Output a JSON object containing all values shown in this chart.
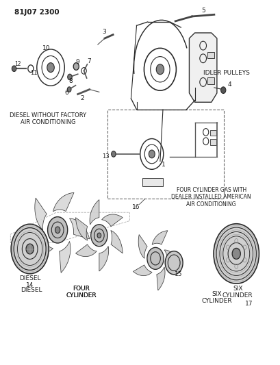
{
  "bg_color": "#ffffff",
  "text_color": "#1a1a1a",
  "line_color": "#2a2a2a",
  "labels": {
    "header": "81J07 2300",
    "idler_pulleys": "IDLER PULLEYS",
    "diesel_no_ac": "DIESEL WITHOUT FACTORY\nAIR CONDITIONING",
    "four_cyl_gas": "FOUR CYLINDER GAS WITH\nDEALER INSTALLED AMERICAN\nAIR CONDITIONING",
    "diesel": "DIESEL",
    "four_cylinder": "FOUR\nCYLINDER",
    "six_cylinder": "SIX\nCYLINDER"
  }
}
